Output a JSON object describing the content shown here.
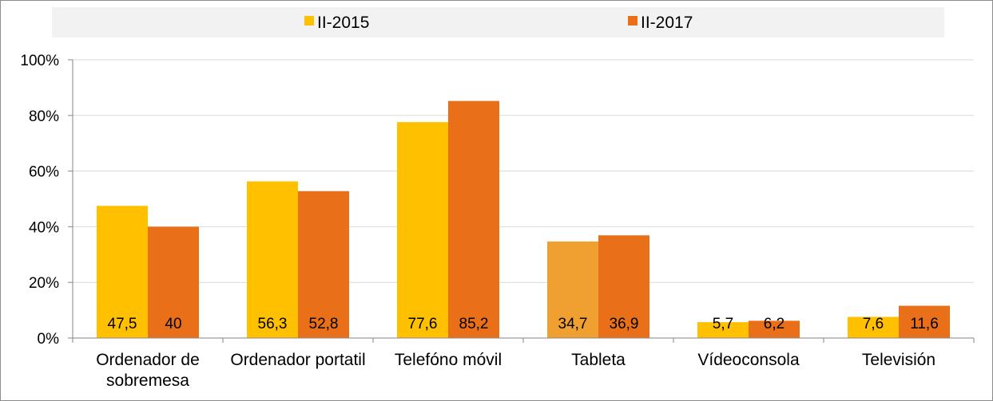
{
  "chart_data": {
    "type": "bar",
    "categories": [
      [
        "Ordenador de",
        "sobremesa"
      ],
      [
        "Ordenador portatil"
      ],
      [
        "Telefóno móvil"
      ],
      [
        "Tableta"
      ],
      [
        "Vídeoconsola"
      ],
      [
        "Televisión"
      ]
    ],
    "series": [
      {
        "name": "II-2015",
        "values": [
          47.5,
          56.3,
          77.6,
          34.7,
          5.7,
          7.6
        ],
        "value_labels": [
          "47,5",
          "56,3",
          "77,6",
          "34,7",
          "5,7",
          "7,6"
        ],
        "color": "#FFC000"
      },
      {
        "name": "II-2017",
        "values": [
          40,
          52.8,
          85.2,
          36.9,
          6.2,
          11.6
        ],
        "value_labels": [
          "40",
          "52,8",
          "85,2",
          "36,9",
          "6,2",
          "11,6"
        ],
        "color": "#E97018"
      }
    ],
    "highlight": {
      "series": 0,
      "index": 3,
      "color": "#F0A030"
    },
    "ylim": [
      0,
      100
    ],
    "yticks": [
      0,
      20,
      40,
      60,
      80,
      100
    ],
    "ytick_labels": [
      "0%",
      "20%",
      "40%",
      "60%",
      "80%",
      "100%"
    ],
    "grid": true,
    "legend_position": "top-center",
    "title": "",
    "xlabel": "",
    "ylabel": ""
  }
}
